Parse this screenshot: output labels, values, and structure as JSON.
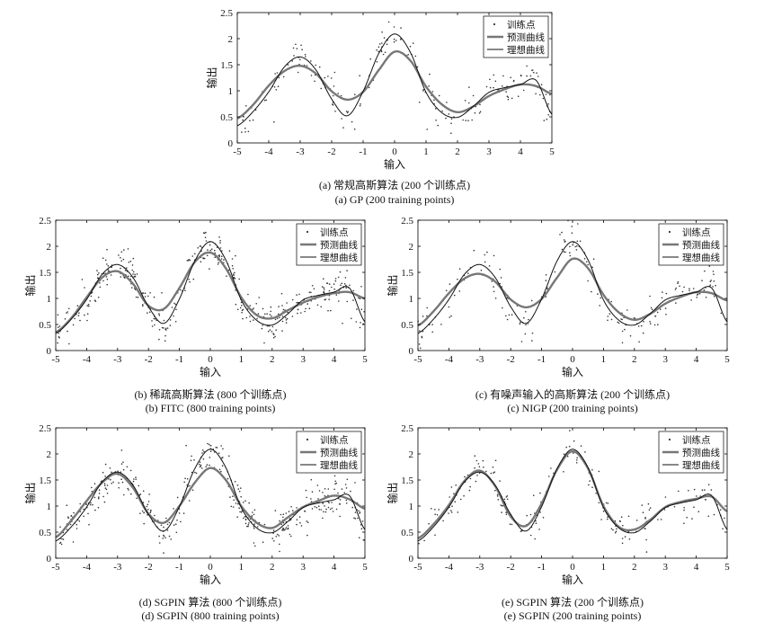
{
  "legend_labels": [
    "训练点",
    "预测曲线",
    "理想曲线"
  ],
  "colors": {
    "ideal": "#111111",
    "pred": "#777777",
    "points": "#333333",
    "axis": "#000000"
  },
  "chart_data": [
    {
      "type": "line",
      "caption_cn": "(a) 常规高斯算法 (200 个训练点)",
      "caption_en": "(a) GP (200 training points)",
      "xlabel": "输入",
      "ylabel": "输出",
      "xlim": [
        -5,
        5
      ],
      "ylim": [
        0,
        2.5
      ],
      "xticks": [
        -5,
        -4,
        -3,
        -2,
        -1,
        0,
        1,
        2,
        3,
        4,
        5
      ],
      "yticks": [
        0,
        0.5,
        1,
        1.5,
        2,
        2.5
      ],
      "legend": "top-right",
      "training_points": 200,
      "x": [
        -5,
        -4.5,
        -4,
        -3.5,
        -3,
        -2.5,
        -2,
        -1.5,
        -1,
        -0.5,
        0,
        0.5,
        1,
        1.5,
        2,
        2.5,
        3,
        3.5,
        4,
        4.5,
        5
      ],
      "series": [
        {
          "name": "预测曲线",
          "values": [
            0.47,
            0.73,
            1.1,
            1.38,
            1.48,
            1.33,
            0.99,
            0.83,
            0.98,
            1.4,
            1.75,
            1.58,
            1.08,
            0.74,
            0.59,
            0.7,
            0.9,
            1.03,
            1.12,
            1.09,
            0.94
          ]
        },
        {
          "name": "理想曲线",
          "values": [
            0.33,
            0.6,
            0.98,
            1.46,
            1.65,
            1.4,
            0.84,
            0.52,
            0.99,
            1.72,
            2.09,
            1.74,
            0.97,
            0.58,
            0.49,
            0.7,
            0.97,
            1.06,
            1.12,
            1.2,
            0.55
          ]
        }
      ]
    },
    {
      "type": "line",
      "caption_cn": "(b) 稀疏高斯算法 (800 个训练点)",
      "caption_en": "(b) FITC (800 training points)",
      "xlabel": "输入",
      "ylabel": "输出",
      "xlim": [
        -5,
        5
      ],
      "ylim": [
        0,
        2.5
      ],
      "xticks": [
        -5,
        -4,
        -3,
        -2,
        -1,
        0,
        1,
        2,
        3,
        4,
        5
      ],
      "yticks": [
        0,
        0.5,
        1,
        1.5,
        2,
        2.5
      ],
      "legend": "top-right",
      "training_points": 800,
      "x": [
        -5,
        -4.5,
        -4,
        -3.5,
        -3,
        -2.5,
        -2,
        -1.5,
        -1,
        -0.5,
        0,
        0.5,
        1,
        1.5,
        2,
        2.5,
        3,
        3.5,
        4,
        4.5,
        5
      ],
      "series": [
        {
          "name": "预测曲线",
          "values": [
            0.35,
            0.62,
            1.02,
            1.4,
            1.52,
            1.28,
            0.86,
            0.8,
            1.2,
            1.7,
            1.88,
            1.58,
            1.02,
            0.68,
            0.62,
            0.77,
            0.92,
            1.03,
            1.1,
            1.12,
            1.0
          ]
        },
        {
          "name": "理想曲线",
          "values": [
            0.33,
            0.6,
            0.98,
            1.46,
            1.65,
            1.4,
            0.84,
            0.52,
            0.99,
            1.72,
            2.09,
            1.74,
            0.97,
            0.58,
            0.49,
            0.7,
            0.97,
            1.06,
            1.12,
            1.2,
            0.55
          ]
        }
      ]
    },
    {
      "type": "line",
      "caption_cn": "(c) 有噪声输入的高斯算法 (200 个训练点)",
      "caption_en": "(c) NIGP (200 training points)",
      "xlabel": "输入",
      "ylabel": "输出",
      "xlim": [
        -5,
        5
      ],
      "ylim": [
        0,
        2.5
      ],
      "xticks": [
        -5,
        -4,
        -3,
        -2,
        -1,
        0,
        1,
        2,
        3,
        4,
        5
      ],
      "yticks": [
        0,
        0.5,
        1,
        1.5,
        2,
        2.5
      ],
      "legend": "top-right",
      "training_points": 200,
      "x": [
        -5,
        -4.5,
        -4,
        -3.5,
        -3,
        -2.5,
        -2,
        -1.5,
        -1,
        -0.5,
        0,
        0.5,
        1,
        1.5,
        2,
        2.5,
        3,
        3.5,
        4,
        4.5,
        5
      ],
      "series": [
        {
          "name": "预测曲线",
          "values": [
            0.48,
            0.75,
            1.1,
            1.38,
            1.47,
            1.32,
            0.98,
            0.83,
            0.99,
            1.4,
            1.76,
            1.58,
            1.07,
            0.73,
            0.59,
            0.7,
            0.9,
            1.03,
            1.12,
            1.1,
            0.96
          ]
        },
        {
          "name": "理想曲线",
          "values": [
            0.33,
            0.6,
            0.98,
            1.46,
            1.65,
            1.4,
            0.84,
            0.52,
            0.99,
            1.72,
            2.09,
            1.74,
            0.97,
            0.58,
            0.49,
            0.7,
            0.97,
            1.06,
            1.12,
            1.2,
            0.55
          ]
        }
      ]
    },
    {
      "type": "line",
      "caption_cn": "(d) SGPIN 算法 (800 个训练点)",
      "caption_en": "(d) SGPIN (800 training points)",
      "xlabel": "输入",
      "ylabel": "输出",
      "xlim": [
        -5,
        5
      ],
      "ylim": [
        0,
        2.5
      ],
      "xticks": [
        -5,
        -4,
        -3,
        -2,
        -1,
        0,
        1,
        2,
        3,
        4,
        5
      ],
      "yticks": [
        0,
        0.5,
        1,
        1.5,
        2,
        2.5
      ],
      "legend": "top-right",
      "training_points": 800,
      "x": [
        -5,
        -4.5,
        -4,
        -3.5,
        -3,
        -2.5,
        -2,
        -1.5,
        -1,
        -0.5,
        0,
        0.5,
        1,
        1.5,
        2,
        2.5,
        3,
        3.5,
        4,
        4.5,
        5
      ],
      "series": [
        {
          "name": "预测曲线",
          "values": [
            0.4,
            0.72,
            1.1,
            1.45,
            1.62,
            1.35,
            0.85,
            0.68,
            1.0,
            1.45,
            1.73,
            1.5,
            1.0,
            0.68,
            0.58,
            0.78,
            0.98,
            1.1,
            1.2,
            1.13,
            0.95
          ]
        },
        {
          "name": "理想曲线",
          "values": [
            0.33,
            0.6,
            0.98,
            1.46,
            1.65,
            1.4,
            0.84,
            0.52,
            0.99,
            1.72,
            2.09,
            1.74,
            0.97,
            0.58,
            0.49,
            0.7,
            0.97,
            1.06,
            1.12,
            1.2,
            0.55
          ]
        }
      ]
    },
    {
      "type": "line",
      "caption_cn": "(e) SGPIN 算法 (200 个训练点)",
      "caption_en": "(e) SGPIN (200 training points)",
      "xlabel": "输入",
      "ylabel": "输出",
      "xlim": [
        -5,
        5
      ],
      "ylim": [
        0,
        2.5
      ],
      "xticks": [
        -5,
        -4,
        -3,
        -2,
        -1,
        0,
        1,
        2,
        3,
        4,
        5
      ],
      "yticks": [
        0,
        0.5,
        1,
        1.5,
        2,
        2.5
      ],
      "legend": "top-right",
      "training_points": 200,
      "x": [
        -5,
        -4.5,
        -4,
        -3.5,
        -3,
        -2.5,
        -2,
        -1.5,
        -1,
        -0.5,
        0,
        0.5,
        1,
        1.5,
        2,
        2.5,
        3,
        3.5,
        4,
        4.5,
        5
      ],
      "series": [
        {
          "name": "预测曲线",
          "values": [
            0.38,
            0.65,
            1.02,
            1.48,
            1.68,
            1.38,
            0.8,
            0.62,
            1.05,
            1.7,
            2.05,
            1.72,
            1.0,
            0.6,
            0.55,
            0.73,
            0.98,
            1.08,
            1.14,
            1.18,
            0.9
          ]
        },
        {
          "name": "理想曲线",
          "values": [
            0.33,
            0.6,
            0.98,
            1.46,
            1.65,
            1.4,
            0.84,
            0.52,
            0.99,
            1.72,
            2.09,
            1.74,
            0.97,
            0.58,
            0.49,
            0.7,
            0.97,
            1.06,
            1.12,
            1.2,
            0.55
          ]
        }
      ]
    }
  ]
}
